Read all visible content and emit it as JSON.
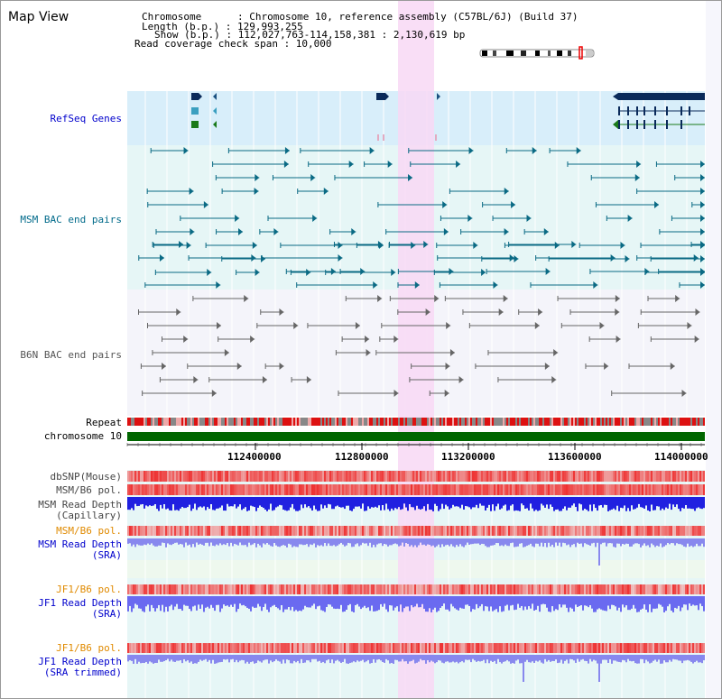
{
  "view": {
    "title": "Map View",
    "info": {
      "chromosome": "Chromosome      : Chromosome 10, reference assembly (C57BL/6J) (Build 37)",
      "length": "Length (b.p.) : 129,993,255",
      "show": "Show (b.p.) : 112,027,763-114,158,381 : 2,130,619 bp",
      "span": "Read coverage check span : 10,000"
    }
  },
  "tracks": {
    "refseq": {
      "label": "RefSeq Genes",
      "color": "#0000cc"
    },
    "msm_bac": {
      "label": "MSM BAC end pairs",
      "color": "#006a8a"
    },
    "b6n_bac": {
      "label": "B6N BAC end pairs",
      "color": "#555555"
    },
    "repeat": {
      "label": "Repeat",
      "color": "#000000"
    },
    "chromosome": {
      "label": "chromosome 10",
      "color": "#000000"
    },
    "axis_ticks": [
      "112400000",
      "112800000",
      "113200000",
      "113600000",
      "114000000"
    ],
    "dbsnp": {
      "label": "dbSNP(Mouse)",
      "color": "#444444"
    },
    "msm_b6_pol_1": {
      "label": "MSM/B6 pol.",
      "color": "#444444"
    },
    "msm_depth_cap": {
      "label1": "MSM Read Depth",
      "label2": "(Capillary)",
      "color": "#444444"
    },
    "msm_b6_pol_2": {
      "label": "MSM/B6 pol.",
      "color": "#e08a00"
    },
    "msm_depth_sra": {
      "label1": "MSM Read Depth",
      "label2": "(SRA)",
      "color": "#0000cc"
    },
    "jf1_b6_pol_1": {
      "label": "JF1/B6 pol.",
      "color": "#e08a00"
    },
    "jf1_depth_sra": {
      "label1": "JF1 Read Depth",
      "label2": "(SRA)",
      "color": "#0000cc"
    },
    "jf1_b6_pol_2": {
      "label": "JF1/B6 pol.",
      "color": "#e08a00"
    },
    "jf1_depth_trim": {
      "label1": "JF1 Read Depth",
      "label2": "(SRA trimmed)",
      "color": "#0000cc"
    }
  },
  "colors": {
    "highlight": "#f8d8f4",
    "refseq_bg": "#d8eefa",
    "track_bg": "#e6f6f6",
    "gene_dark": "#0a2a5a",
    "chromosome_bar": "#006600",
    "snp_red": "#ee3333",
    "depth_blue": "#3333ee"
  }
}
